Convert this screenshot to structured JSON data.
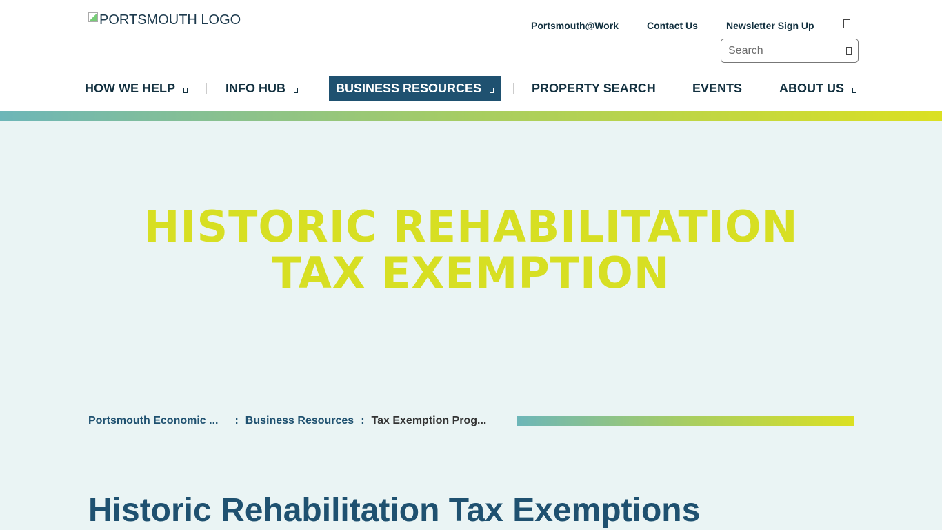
{
  "header": {
    "logo_alt": "PORTSMOUTH LOGO",
    "utility_links": [
      "Portsmouth@Work",
      "Contact Us",
      "Newsletter Sign Up"
    ],
    "search_placeholder": "Search"
  },
  "nav": [
    {
      "label": "HOW WE HELP"
    },
    {
      "label": "INFO HUB"
    },
    {
      "label": "BUSINESS RESOURCES",
      "active": true
    },
    {
      "label": "PROPERTY SEARCH"
    },
    {
      "label": "EVENTS"
    },
    {
      "label": "ABOUT US"
    }
  ],
  "hero": {
    "line1": "HISTORIC REHABILITATION",
    "line2": "TAX EXEMPTION"
  },
  "breadcrumb": {
    "items": [
      "Portsmouth Economic ...",
      "Business Resources",
      "Tax Exemption Prog..."
    ],
    "separator": ":"
  },
  "page": {
    "title": "Historic Rehabilitation Tax Exemptions"
  },
  "colors": {
    "primary": "#1f5170",
    "accent": "#d7df23",
    "background": "#eaf4f4"
  }
}
